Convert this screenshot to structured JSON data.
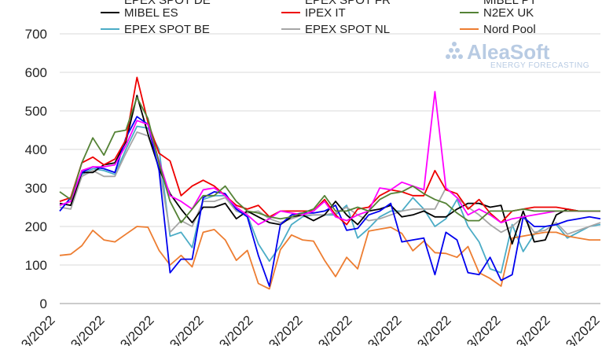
{
  "chart_data": {
    "type": "line",
    "title": "",
    "xlabel": "",
    "ylabel": "",
    "ylim": [
      0,
      700
    ],
    "yticks": [
      0,
      100,
      200,
      300,
      400,
      500,
      600,
      700
    ],
    "grid": "horizontal",
    "x_ticks_visible": [
      "3/2022",
      "3/2022",
      "3/2022",
      "3/2022",
      "3/2022",
      "3/2022",
      "3/2022",
      "3/2022",
      "3/2022",
      "3/2022",
      "3/2022",
      "3/2022"
    ],
    "x_count": 50,
    "legend_partial": [
      "EPEX SPOT DE",
      "EPEX SPOT FR",
      "MIBEL PT"
    ],
    "series": [
      {
        "name": "EPEX SPOT BE",
        "color": "#4bacc6",
        "values": [
          255,
          265,
          335,
          350,
          345,
          335,
          400,
          460,
          455,
          400,
          175,
          185,
          145,
          270,
          280,
          280,
          240,
          230,
          155,
          110,
          150,
          205,
          225,
          230,
          230,
          230,
          255,
          170,
          195,
          225,
          240,
          240,
          275,
          245,
          200,
          220,
          270,
          200,
          160,
          90,
          80,
          205,
          135,
          180,
          200,
          205,
          170,
          185,
          200,
          205
        ]
      },
      {
        "name": "EPEX SPOT NL",
        "color": "#a6a6a6",
        "values": [
          250,
          245,
          330,
          345,
          330,
          330,
          390,
          445,
          435,
          355,
          185,
          215,
          200,
          265,
          265,
          275,
          240,
          235,
          240,
          220,
          210,
          220,
          230,
          230,
          230,
          235,
          250,
          230,
          215,
          220,
          230,
          240,
          245,
          245,
          245,
          300,
          275,
          250,
          230,
          205,
          185,
          200,
          225,
          185,
          190,
          210,
          180,
          190,
          200,
          210
        ]
      },
      {
        "name": "Nord Pool",
        "color": "#ed7d31",
        "values": [
          125,
          128,
          150,
          190,
          165,
          160,
          180,
          200,
          198,
          138,
          100,
          125,
          95,
          185,
          192,
          165,
          112,
          138,
          52,
          38,
          140,
          178,
          165,
          162,
          112,
          70,
          120,
          90,
          188,
          193,
          198,
          182,
          137,
          162,
          132,
          130,
          120,
          148,
          80,
          65,
          45,
          170,
          175,
          180,
          185,
          185,
          175,
          170,
          165,
          165
        ]
      },
      {
        "name": "MIBEL ES",
        "color": "#000000",
        "values": [
          260,
          255,
          340,
          340,
          360,
          365,
          420,
          540,
          440,
          350,
          285,
          245,
          210,
          250,
          250,
          260,
          220,
          240,
          225,
          210,
          205,
          225,
          230,
          215,
          230,
          265,
          230,
          205,
          240,
          245,
          255,
          225,
          230,
          240,
          225,
          225,
          245,
          260,
          260,
          250,
          255,
          155,
          240,
          160,
          165,
          230,
          245,
          240,
          240,
          240
        ]
      },
      {
        "name": "MIBEL PT",
        "color": "#0000ee",
        "values": [
          240,
          275,
          340,
          355,
          350,
          340,
          430,
          485,
          465,
          345,
          80,
          115,
          115,
          275,
          290,
          285,
          245,
          225,
          125,
          45,
          205,
          230,
          235,
          235,
          240,
          255,
          190,
          195,
          230,
          240,
          260,
          160,
          165,
          170,
          75,
          185,
          165,
          80,
          75,
          120,
          60,
          75,
          225,
          200,
          200,
          205,
          215,
          220,
          225,
          220
        ]
      },
      {
        "name": "IPEX IT",
        "color": "#ee0000",
        "values": [
          265,
          275,
          365,
          380,
          360,
          375,
          425,
          587,
          470,
          390,
          370,
          280,
          305,
          320,
          305,
          280,
          255,
          245,
          255,
          225,
          240,
          240,
          240,
          240,
          270,
          230,
          205,
          245,
          250,
          280,
          295,
          290,
          280,
          280,
          345,
          295,
          285,
          245,
          270,
          235,
          210,
          240,
          245,
          250,
          250,
          250,
          245,
          240,
          240,
          240
        ]
      },
      {
        "name": "EPEX SPOT FR",
        "color": "#ff00ff",
        "values": [
          255,
          265,
          345,
          355,
          355,
          360,
          410,
          475,
          465,
          370,
          280,
          265,
          245,
          295,
          300,
          280,
          250,
          230,
          205,
          220,
          240,
          235,
          230,
          240,
          265,
          225,
          215,
          230,
          240,
          300,
          295,
          315,
          305,
          295,
          550,
          300,
          275,
          230,
          245,
          230,
          210,
          220,
          225,
          230,
          235,
          240,
          240,
          240,
          240,
          240
        ]
      },
      {
        "name": "N2EX UK",
        "color": "#548235",
        "values": [
          290,
          270,
          365,
          430,
          385,
          445,
          450,
          535,
          480,
          365,
          265,
          210,
          245,
          280,
          280,
          305,
          265,
          240,
          235,
          225,
          220,
          225,
          235,
          245,
          280,
          240,
          240,
          250,
          240,
          270,
          285,
          290,
          305,
          285,
          270,
          260,
          235,
          215,
          215,
          240,
          240,
          240,
          245,
          240,
          240,
          240,
          240,
          240,
          240,
          240
        ]
      }
    ],
    "legend": [
      {
        "label": "MIBEL ES",
        "color": "#000000"
      },
      {
        "label": "IPEX IT",
        "color": "#ee0000"
      },
      {
        "label": "N2EX UK",
        "color": "#548235"
      },
      {
        "label": "EPEX SPOT BE",
        "color": "#4bacc6"
      },
      {
        "label": "EPEX SPOT NL",
        "color": "#a6a6a6"
      },
      {
        "label": "Nord Pool",
        "color": "#ed7d31"
      }
    ]
  },
  "watermark": {
    "brand": "AleaSoft",
    "tagline": "ENERGY FORECASTING"
  }
}
